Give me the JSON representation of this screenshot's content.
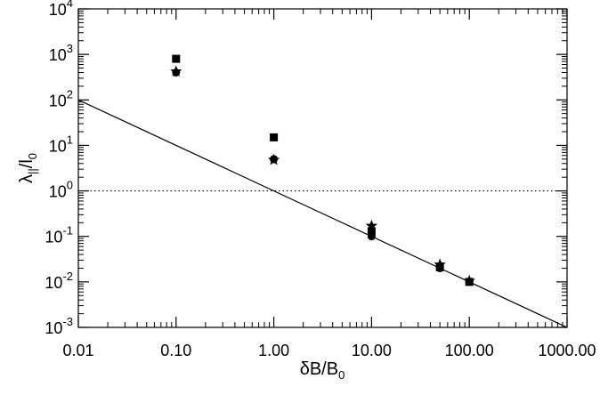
{
  "chart_data": {
    "type": "scatter",
    "title": "",
    "xscale": "log",
    "yscale": "log",
    "xlim": [
      0.01,
      1000
    ],
    "ylim": [
      0.001,
      10000
    ],
    "grid": false,
    "legend": "none",
    "xlabel": {
      "main": "δB/B",
      "sub": "0"
    },
    "ylabel": {
      "main": "λ",
      "sub1": "||",
      "mid": "/l",
      "sub2": "0"
    },
    "x_ticks": [
      {
        "value": 0.01,
        "label": "0.01"
      },
      {
        "value": 0.1,
        "label": "0.10"
      },
      {
        "value": 1,
        "label": "1.00"
      },
      {
        "value": 10,
        "label": "10.00"
      },
      {
        "value": 100,
        "label": "100.00"
      },
      {
        "value": 1000,
        "label": "1000.00"
      }
    ],
    "y_ticks": [
      {
        "value": 0.001,
        "base": "10",
        "exp": "-3"
      },
      {
        "value": 0.01,
        "base": "10",
        "exp": "-2"
      },
      {
        "value": 0.1,
        "base": "10",
        "exp": "-1"
      },
      {
        "value": 1,
        "base": "10",
        "exp": "0"
      },
      {
        "value": 10,
        "base": "10",
        "exp": "1"
      },
      {
        "value": 100,
        "base": "10",
        "exp": "2"
      },
      {
        "value": 1000,
        "base": "10",
        "exp": "3"
      },
      {
        "value": 10000,
        "base": "10",
        "exp": "4"
      }
    ],
    "series": [
      {
        "marker": "square",
        "color": "#000000",
        "points": [
          {
            "x": 0.1,
            "y": 800
          },
          {
            "x": 1,
            "y": 15
          },
          {
            "x": 10,
            "y": 0.13
          },
          {
            "x": 50,
            "y": 0.021
          },
          {
            "x": 100,
            "y": 0.01
          }
        ]
      },
      {
        "marker": "circle",
        "color": "#000000",
        "points": [
          {
            "x": 0.1,
            "y": 400
          },
          {
            "x": 1,
            "y": 5
          },
          {
            "x": 10,
            "y": 0.1
          },
          {
            "x": 50,
            "y": 0.02
          },
          {
            "x": 100,
            "y": 0.01
          }
        ]
      },
      {
        "marker": "star",
        "color": "#000000",
        "points": [
          {
            "x": 0.1,
            "y": 420
          },
          {
            "x": 1,
            "y": 4.8
          },
          {
            "x": 10,
            "y": 0.17
          },
          {
            "x": 50,
            "y": 0.024
          },
          {
            "x": 100,
            "y": 0.0105
          }
        ]
      }
    ],
    "lines": [
      {
        "kind": "reference",
        "style": "solid",
        "color": "#000000",
        "points": [
          {
            "x": 0.01,
            "y": 100
          },
          {
            "x": 1000,
            "y": 0.001
          }
        ]
      },
      {
        "kind": "horizontal",
        "style": "dotted",
        "color": "#000000",
        "y": 1
      }
    ]
  }
}
